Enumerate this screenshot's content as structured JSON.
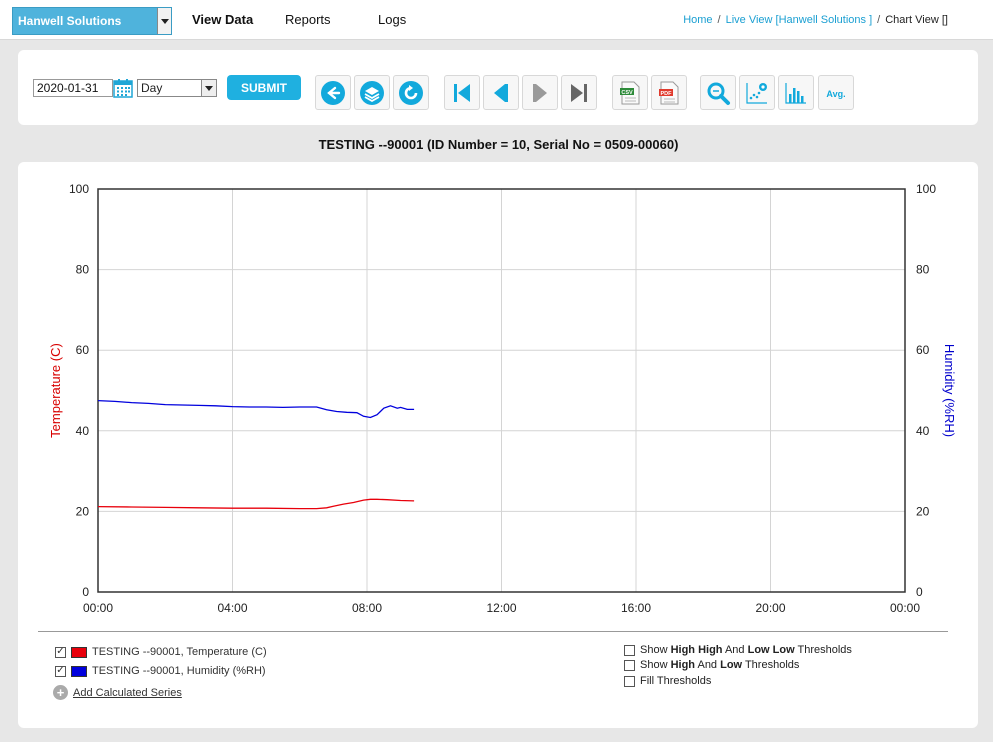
{
  "nav": {
    "org": "Hanwell Solutions",
    "links": [
      "View Data",
      "Reports",
      "Logs"
    ],
    "active": "View Data",
    "breadcrumb": {
      "home": "Home",
      "live": "Live View [Hanwell Solutions ]",
      "current": "Chart View []"
    }
  },
  "toolbar": {
    "date": "2020-01-31",
    "period": "Day",
    "submit": "SUBMIT",
    "buttons": [
      "back-icon",
      "layers-icon",
      "refresh-icon",
      "first-icon",
      "prev-icon",
      "next-icon",
      "last-icon",
      "csv-icon",
      "pdf-icon",
      "zoom-icon",
      "scatter-settings-icon",
      "bar-chart-icon",
      "avg-icon"
    ],
    "avg_label": "Avg.",
    "csv_label": "CSV",
    "pdf_label": "PDF"
  },
  "chart_title": "TESTING --90001 (ID Number = 10, Serial No = 0509-00060)",
  "chart_data": {
    "type": "line",
    "ylabel_left": "Temperature (C)",
    "ylabel_right": "Humidity (%RH)",
    "ylim": [
      0,
      100
    ],
    "yticks": [
      0,
      20,
      40,
      60,
      80,
      100
    ],
    "xlim": [
      0,
      24
    ],
    "xticks": [
      "00:00",
      "04:00",
      "08:00",
      "12:00",
      "16:00",
      "20:00",
      "00:00"
    ],
    "grid": true,
    "series": [
      {
        "name": "TESTING --90001, Temperature (C)",
        "color": "#e8000b",
        "x": [
          0,
          1,
          2,
          3,
          4,
          5,
          6,
          6.5,
          6.8,
          7.0,
          7.3,
          7.6,
          7.9,
          8.1,
          8.3,
          8.6,
          9.0,
          9.4
        ],
        "y": [
          21.2,
          21.1,
          21.0,
          20.9,
          20.8,
          20.8,
          20.7,
          20.7,
          20.9,
          21.3,
          21.8,
          22.2,
          22.8,
          23.0,
          23.0,
          22.9,
          22.7,
          22.6
        ]
      },
      {
        "name": "TESTING --90001, Humidity (%RH)",
        "color": "#0000dd",
        "x": [
          0,
          0.5,
          1,
          1.5,
          2,
          2.5,
          3,
          3.5,
          4,
          4.5,
          5,
          5.5,
          6,
          6.5,
          6.8,
          7.1,
          7.4,
          7.7,
          7.9,
          8.1,
          8.3,
          8.5,
          8.7,
          8.9,
          9.0,
          9.2,
          9.4
        ],
        "y": [
          47.5,
          47.3,
          47.0,
          46.8,
          46.5,
          46.4,
          46.3,
          46.2,
          46.0,
          45.9,
          45.9,
          45.8,
          45.9,
          45.9,
          45.2,
          44.8,
          44.6,
          44.5,
          43.6,
          43.3,
          44.0,
          45.6,
          46.2,
          45.6,
          45.8,
          45.3,
          45.3
        ]
      }
    ]
  },
  "legend": [
    {
      "label": "TESTING --90001, Temperature (C)",
      "color": "#e8000b",
      "checked": "✓"
    },
    {
      "label": "TESTING --90001, Humidity (%RH)",
      "color": "#0000dd",
      "checked": "✓"
    }
  ],
  "add_calculated": "Add Calculated Series",
  "thresholds": {
    "hhll": {
      "pre": "Show ",
      "b1": "High High",
      "mid": " And ",
      "b2": "Low Low",
      "post": " Thresholds"
    },
    "hl": {
      "pre": "Show ",
      "b1": "High",
      "mid": " And ",
      "b2": "Low",
      "post": " Thresholds"
    },
    "fill": "Fill Thresholds"
  }
}
